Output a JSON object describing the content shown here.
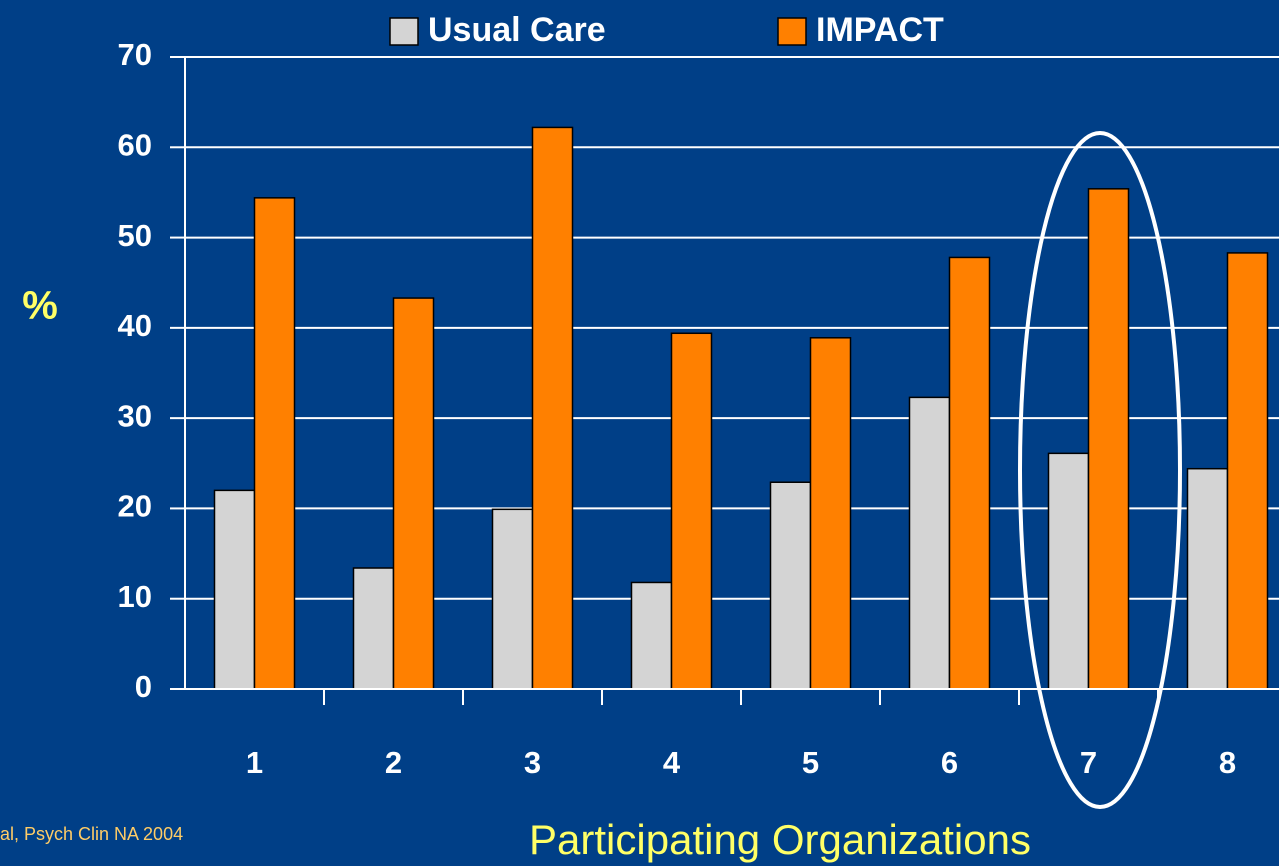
{
  "chart_data": {
    "type": "bar",
    "categories": [
      "1",
      "2",
      "3",
      "4",
      "5",
      "6",
      "7",
      "8"
    ],
    "series": [
      {
        "name": "Usual Care",
        "color": "#d4d4d4",
        "values": [
          22.0,
          13.4,
          19.9,
          11.8,
          22.9,
          32.3,
          26.1,
          24.4
        ]
      },
      {
        "name": "IMPACT",
        "color": "#ff8000",
        "values": [
          54.4,
          43.3,
          62.2,
          39.4,
          38.9,
          47.8,
          55.4,
          48.3
        ]
      }
    ],
    "y_label": "%",
    "x_label": "Participating Organizations",
    "source": "al, Psych Clin NA 2004",
    "ylim": [
      0,
      70
    ],
    "yticks": [
      0,
      10,
      20,
      30,
      40,
      50,
      60,
      70
    ],
    "grid": true
  }
}
